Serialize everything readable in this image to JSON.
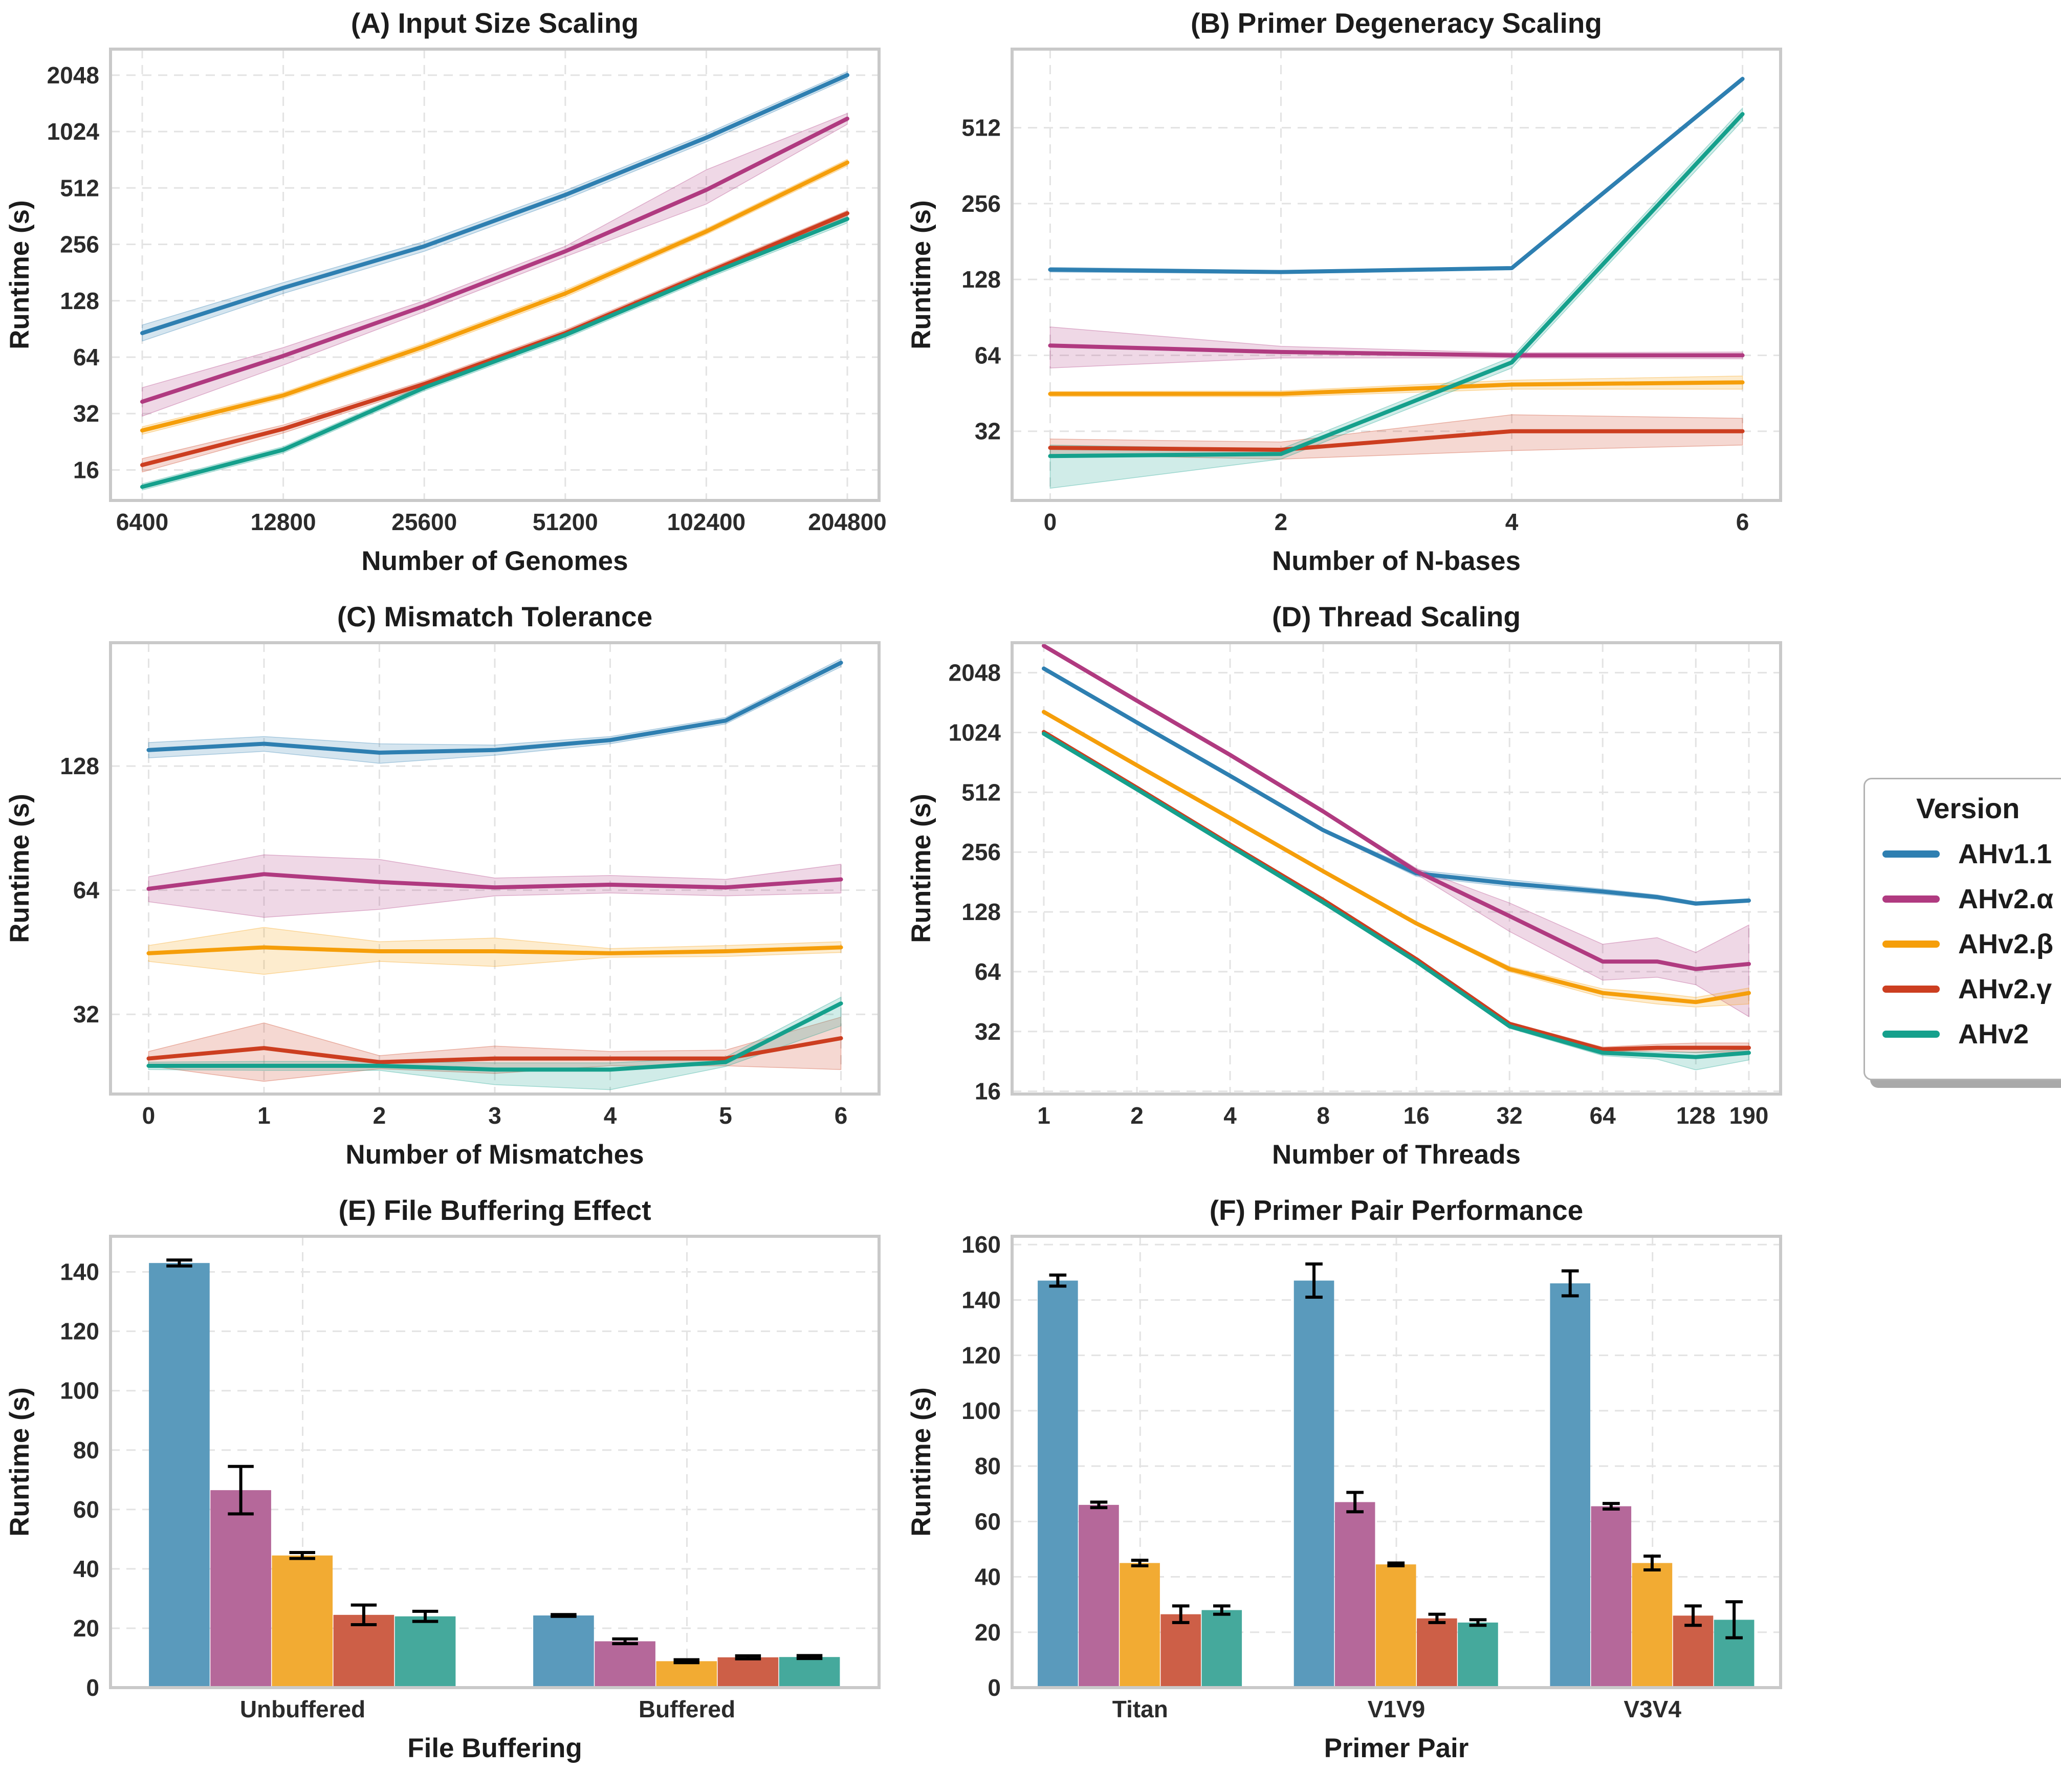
{
  "legend": {
    "title": "Version",
    "items": [
      {
        "label": "AHv1.1",
        "color": "#2e7fb1"
      },
      {
        "label": "AHv2.α",
        "color": "#b03a80"
      },
      {
        "label": "AHv2.β",
        "color": "#f59e0a"
      },
      {
        "label": "AHv2.γ",
        "color": "#cc3e20"
      },
      {
        "label": "AHv2",
        "color": "#15a08c"
      }
    ]
  },
  "palette": {
    "line": [
      "#2e7fb1",
      "#b03a80",
      "#f59e0a",
      "#cc3e20",
      "#15a08c"
    ],
    "bar": [
      "#5a9abc",
      "#b5689a",
      "#f2ab33",
      "#cd5f47",
      "#45a99c"
    ],
    "grid": "#e3e3e3",
    "spine": "#c9c9c9",
    "error": "#000000",
    "text": "#1c1c1c"
  },
  "chart_data": [
    {
      "id": "A",
      "type": "line",
      "title": "(A) Input Size Scaling",
      "xlabel": "Number of Genomes",
      "ylabel": "Runtime (s)",
      "xscale": "log",
      "yscale": "log2",
      "x": [
        6400,
        12800,
        25600,
        51200,
        102400,
        204800
      ],
      "xticks": [
        6400,
        12800,
        25600,
        51200,
        102400,
        204800
      ],
      "yticks": [
        16,
        32,
        64,
        128,
        256,
        512,
        1024,
        2048
      ],
      "ylim": [
        11,
        2820
      ],
      "series": [
        {
          "name": "AHv1.1",
          "color": "#2e7fb1",
          "values": [
            86,
            150,
            250,
            470,
            950,
            2050
          ],
          "lo": [
            78,
            140,
            235,
            445,
            902,
            1960
          ],
          "hi": [
            95,
            160,
            265,
            496,
            998,
            2140
          ]
        },
        {
          "name": "AHv2.α",
          "color": "#b03a80",
          "values": [
            37,
            65,
            120,
            235,
            500,
            1200
          ],
          "lo": [
            31,
            58,
            112,
            220,
            420,
            1120
          ],
          "hi": [
            44,
            72,
            128,
            250,
            640,
            1280
          ]
        },
        {
          "name": "AHv2.β",
          "color": "#f59e0a",
          "values": [
            26,
            40,
            73,
            140,
            300,
            700
          ],
          "lo": [
            24.8,
            38.5,
            70,
            134,
            289,
            672
          ],
          "hi": [
            27.2,
            41.5,
            76,
            146,
            311,
            728
          ]
        },
        {
          "name": "AHv2.γ",
          "color": "#cc3e20",
          "values": [
            17,
            26.5,
            46,
            86,
            180,
            375
          ],
          "lo": [
            15.6,
            25.2,
            44.2,
            82.5,
            173,
            362
          ],
          "hi": [
            18.4,
            27.8,
            47.8,
            89.5,
            187,
            388
          ]
        },
        {
          "name": "AHv2",
          "color": "#15a08c",
          "values": [
            13,
            20.5,
            44,
            84,
            175,
            350
          ],
          "lo": [
            12.5,
            19.7,
            42.3,
            80.6,
            168,
            333
          ],
          "hi": [
            13.5,
            21.3,
            45.7,
            87.4,
            182,
            367
          ]
        }
      ]
    },
    {
      "id": "B",
      "type": "line",
      "title": "(B) Primer Degeneracy Scaling",
      "xlabel": "Number of N-bases",
      "ylabel": "Runtime (s)",
      "xscale": "linear",
      "yscale": "log2",
      "x": [
        0,
        2,
        4,
        6
      ],
      "xticks": [
        0,
        2,
        4,
        6
      ],
      "yticks": [
        32,
        64,
        128,
        256,
        512
      ],
      "ylim": [
        17,
        1050
      ],
      "series": [
        {
          "name": "AHv1.1",
          "color": "#2e7fb1",
          "values": [
            140,
            137,
            142,
            800
          ],
          "lo": [
            137,
            135,
            140,
            786
          ],
          "hi": [
            143,
            139,
            144,
            814
          ]
        },
        {
          "name": "AHv2.α",
          "color": "#b03a80",
          "values": [
            70,
            66,
            64,
            64
          ],
          "lo": [
            57,
            62.5,
            62.5,
            62
          ],
          "hi": [
            83,
            69.5,
            65.5,
            66
          ]
        },
        {
          "name": "AHv2.β",
          "color": "#f59e0a",
          "values": [
            45,
            45,
            49,
            50
          ],
          "lo": [
            44,
            43.8,
            47,
            47
          ],
          "hi": [
            46,
            46.2,
            51,
            53
          ]
        },
        {
          "name": "AHv2.γ",
          "color": "#cc3e20",
          "values": [
            27.5,
            27,
            32,
            32
          ],
          "lo": [
            25.8,
            24.8,
            26.8,
            28.2
          ],
          "hi": [
            29.8,
            29,
            37.2,
            36
          ]
        },
        {
          "name": "AHv2",
          "color": "#15a08c",
          "values": [
            25.5,
            26,
            60,
            580
          ],
          "lo": [
            19,
            24.8,
            57,
            546
          ],
          "hi": [
            28.2,
            27.2,
            63,
            612
          ]
        }
      ]
    },
    {
      "id": "C",
      "type": "line",
      "title": "(C) Mismatch Tolerance",
      "xlabel": "Number of Mismatches",
      "ylabel": "Runtime (s)",
      "xscale": "linear",
      "yscale": "log2",
      "x": [
        0,
        1,
        2,
        3,
        4,
        5,
        6
      ],
      "xticks": [
        0,
        1,
        2,
        3,
        4,
        5,
        6
      ],
      "yticks": [
        32,
        64,
        128
      ],
      "ylim": [
        20.5,
        255
      ],
      "series": [
        {
          "name": "AHv1.1",
          "color": "#2e7fb1",
          "values": [
            140,
            145,
            138,
            140,
            148,
            165,
            228
          ],
          "lo": [
            134,
            139,
            130,
            136,
            145,
            162,
            223
          ],
          "hi": [
            146,
            151,
            145,
            144,
            151,
            168,
            233
          ]
        },
        {
          "name": "AHv2.α",
          "color": "#b03a80",
          "values": [
            64.5,
            70,
            67,
            65,
            66,
            65,
            68
          ],
          "lo": [
            60,
            55,
            57.5,
            62,
            63,
            62,
            63
          ],
          "hi": [
            69,
            78,
            76,
            68.5,
            69.5,
            68,
            74
          ]
        },
        {
          "name": "AHv2.β",
          "color": "#f59e0a",
          "values": [
            45,
            46.5,
            45.5,
            45.5,
            45,
            45.5,
            46.5
          ],
          "lo": [
            43,
            40,
            43,
            41.8,
            44,
            44.2,
            45.2
          ],
          "hi": [
            47,
            52,
            48,
            49,
            46.2,
            47,
            48
          ]
        },
        {
          "name": "AHv2.γ",
          "color": "#cc3e20",
          "values": [
            25,
            26.5,
            24.5,
            25,
            25,
            25,
            28
          ],
          "lo": [
            24,
            22,
            23.6,
            23,
            24,
            24,
            23.5
          ],
          "hi": [
            26,
            30.5,
            25.4,
            26.8,
            26,
            26.2,
            31.5
          ]
        },
        {
          "name": "AHv2",
          "color": "#15a08c",
          "values": [
            24,
            24,
            24,
            23.5,
            23.5,
            24.5,
            34
          ],
          "lo": [
            23.5,
            23.4,
            23.4,
            21.6,
            21,
            23.9,
            30
          ],
          "hi": [
            24.5,
            24.6,
            24.6,
            24.4,
            24.4,
            25.2,
            35.2
          ]
        }
      ]
    },
    {
      "id": "D",
      "type": "line",
      "title": "(D) Thread Scaling",
      "xlabel": "Number of Threads",
      "ylabel": "Runtime (s)",
      "xscale": "log",
      "yscale": "log2",
      "x": [
        1,
        2,
        4,
        8,
        16,
        32,
        64,
        96,
        128,
        190
      ],
      "xticks": [
        1,
        2,
        4,
        8,
        16,
        32,
        64,
        128,
        190
      ],
      "yticks": [
        16,
        32,
        64,
        128,
        256,
        512,
        1024,
        2048
      ],
      "ylim": [
        15.5,
        2900
      ],
      "series": [
        {
          "name": "AHv1.1",
          "color": "#2e7fb1",
          "values": [
            2150,
            1150,
            620,
            330,
            200,
            178,
            162,
            152,
            141,
            146
          ],
          "lo": [
            2120,
            1135,
            612,
            325,
            193,
            171,
            157,
            148,
            138,
            143
          ],
          "hi": [
            2180,
            1165,
            628,
            335,
            208,
            186,
            167,
            156,
            144,
            149
          ]
        },
        {
          "name": "AHv2.α",
          "color": "#b03a80",
          "values": [
            2800,
            1480,
            790,
            410,
            205,
            122,
            72,
            72,
            66,
            70
          ],
          "lo": [
            2760,
            1460,
            778,
            404,
            198,
            102,
            58,
            60,
            55,
            38
          ],
          "hi": [
            2840,
            1500,
            802,
            416,
            212,
            142,
            88,
            95,
            80,
            110
          ]
        },
        {
          "name": "AHv2.β",
          "color": "#f59e0a",
          "values": [
            1300,
            700,
            380,
            205,
            112,
            66,
            50,
            47,
            45,
            50
          ],
          "lo": [
            1285,
            692,
            375,
            202,
            110,
            64,
            47.5,
            44,
            42.5,
            44
          ],
          "hi": [
            1315,
            708,
            385,
            208,
            114,
            68,
            52.5,
            50,
            47.5,
            53
          ]
        },
        {
          "name": "AHv2.γ",
          "color": "#cc3e20",
          "values": [
            1030,
            540,
            280,
            147,
            74,
            35,
            26,
            26.5,
            26.5,
            26.5
          ],
          "lo": [
            1020,
            534,
            277,
            145,
            72.8,
            34.3,
            25.3,
            25.6,
            25,
            25.4
          ],
          "hi": [
            1040,
            546,
            283,
            149,
            75.2,
            35.7,
            26.7,
            27.6,
            28,
            28
          ]
        },
        {
          "name": "AHv2",
          "color": "#15a08c",
          "values": [
            1010,
            530,
            275,
            143,
            72,
            34,
            25,
            24.3,
            23.8,
            25
          ],
          "lo": [
            1000,
            524,
            272,
            141,
            70.8,
            33.2,
            24.2,
            23.2,
            20.5,
            23
          ],
          "hi": [
            1020,
            536,
            278,
            145,
            73.2,
            34.8,
            25.8,
            25.2,
            25.2,
            26
          ]
        }
      ]
    },
    {
      "id": "E",
      "type": "bar",
      "title": "(E) File Buffering Effect",
      "xlabel": "File Buffering",
      "ylabel": "Runtime (s)",
      "categories": [
        "Unbuffered",
        "Buffered"
      ],
      "yticks": [
        0,
        20,
        40,
        60,
        80,
        100,
        120,
        140
      ],
      "ylim": [
        0,
        152
      ],
      "series": [
        {
          "name": "AHv1.1",
          "color": "#5a9abc",
          "values": [
            143,
            24.3
          ],
          "errors": [
            1,
            0.3
          ]
        },
        {
          "name": "AHv2.α",
          "color": "#b5689a",
          "values": [
            66.5,
            15.6
          ],
          "errors": [
            8,
            0.8
          ]
        },
        {
          "name": "AHv2.β",
          "color": "#f2ab33",
          "values": [
            44.5,
            8.9
          ],
          "errors": [
            1,
            0.5
          ]
        },
        {
          "name": "AHv2.γ",
          "color": "#cd5f47",
          "values": [
            24.5,
            10.2
          ],
          "errors": [
            3.3,
            0.5
          ]
        },
        {
          "name": "AHv2",
          "color": "#45a99c",
          "values": [
            24,
            10.3
          ],
          "errors": [
            1.7,
            0.5
          ]
        }
      ]
    },
    {
      "id": "F",
      "type": "bar",
      "title": "(F) Primer Pair Performance",
      "xlabel": "Primer Pair",
      "ylabel": "Runtime (s)",
      "categories": [
        "Titan",
        "V1V9",
        "V3V4"
      ],
      "yticks": [
        0,
        20,
        40,
        60,
        80,
        100,
        120,
        140,
        160
      ],
      "ylim": [
        0,
        163
      ],
      "series": [
        {
          "name": "AHv1.1",
          "color": "#5a9abc",
          "values": [
            147,
            147,
            146
          ],
          "errors": [
            2,
            6,
            4.5
          ]
        },
        {
          "name": "AHv2.α",
          "color": "#b5689a",
          "values": [
            66,
            67,
            65.5
          ],
          "errors": [
            1,
            3.5,
            1
          ]
        },
        {
          "name": "AHv2.β",
          "color": "#f2ab33",
          "values": [
            45,
            44.5,
            45
          ],
          "errors": [
            1,
            0.5,
            2.5
          ]
        },
        {
          "name": "AHv2.γ",
          "color": "#cd5f47",
          "values": [
            26.5,
            25,
            26
          ],
          "errors": [
            3,
            1.5,
            3.5
          ]
        },
        {
          "name": "AHv2",
          "color": "#45a99c",
          "values": [
            28,
            23.5,
            24.5
          ],
          "errors": [
            1.5,
            1,
            6.5
          ]
        }
      ]
    }
  ]
}
